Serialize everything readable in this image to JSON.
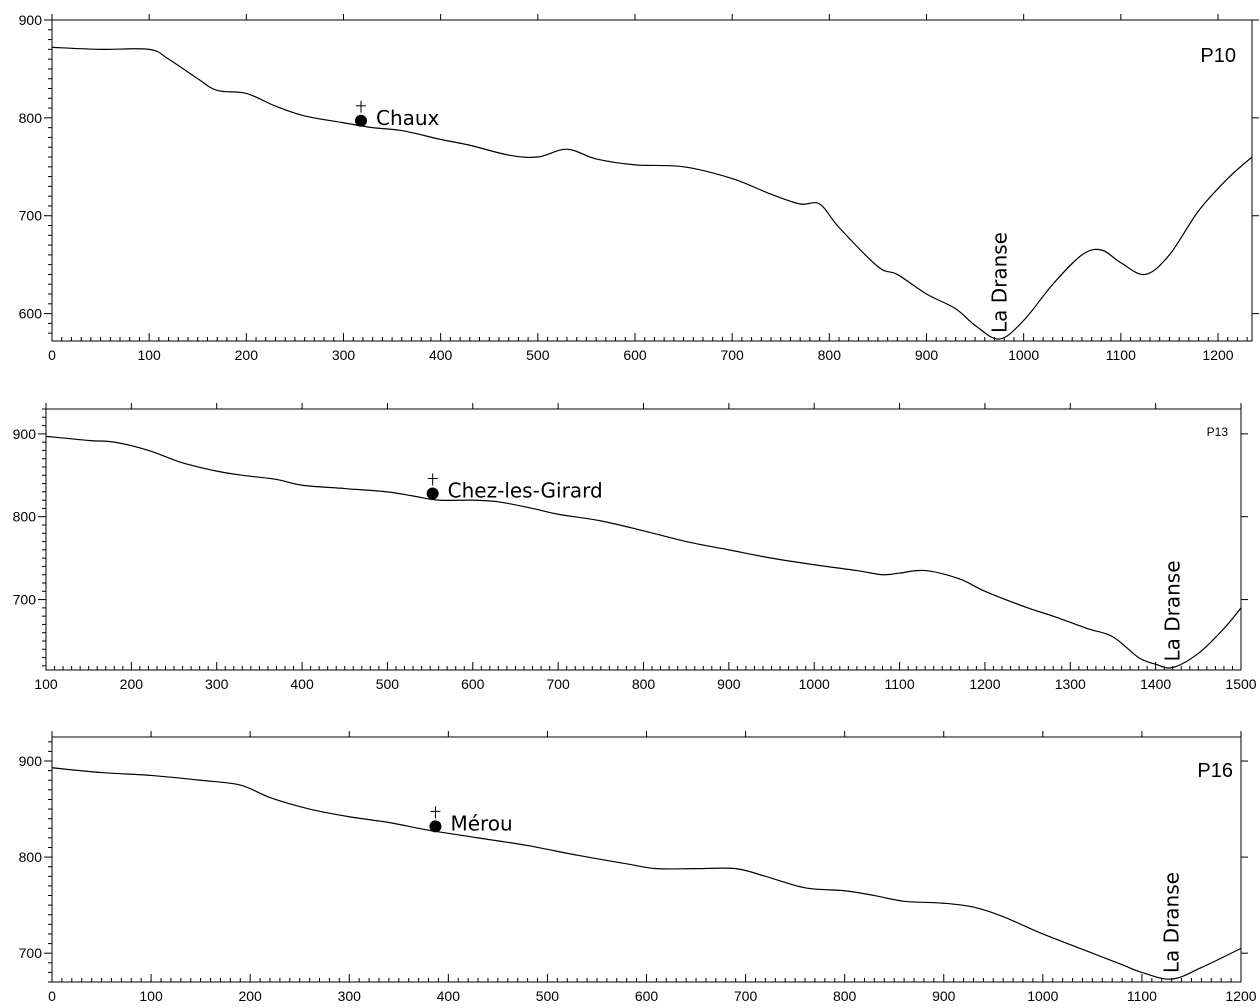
{
  "chart_data": [
    {
      "type": "line",
      "profile_id": "P10",
      "xlim": [
        0,
        1235
      ],
      "ylim": [
        572,
        900
      ],
      "x_ticks": [
        0,
        100,
        200,
        300,
        400,
        500,
        600,
        700,
        800,
        900,
        1000,
        1100,
        1200
      ],
      "y_ticks": [
        600,
        700,
        800,
        900
      ],
      "x": [
        0,
        50,
        100,
        120,
        150,
        170,
        200,
        230,
        260,
        300,
        330,
        360,
        400,
        430,
        470,
        500,
        530,
        560,
        600,
        650,
        700,
        740,
        770,
        790,
        810,
        850,
        870,
        900,
        930,
        950,
        975,
        1000,
        1030,
        1060,
        1080,
        1100,
        1125,
        1150,
        1180,
        1210,
        1235
      ],
      "y": [
        872,
        870,
        870,
        860,
        840,
        828,
        825,
        812,
        802,
        795,
        790,
        787,
        778,
        772,
        762,
        760,
        768,
        758,
        752,
        750,
        738,
        722,
        712,
        712,
        688,
        648,
        640,
        620,
        605,
        588,
        574,
        593,
        630,
        660,
        665,
        652,
        640,
        660,
        705,
        738,
        760
      ],
      "annotations": [
        {
          "label": "Chaux",
          "x": 318,
          "y": 797,
          "marker": "church"
        },
        {
          "label": "La Dranse",
          "x": 975,
          "y": 574,
          "orientation": "vertical"
        }
      ]
    },
    {
      "type": "line",
      "profile_id": "P13",
      "xlim": [
        100,
        1500
      ],
      "ylim": [
        615,
        930
      ],
      "x_ticks": [
        100,
        200,
        300,
        400,
        500,
        600,
        700,
        800,
        900,
        1000,
        1100,
        1200,
        1300,
        1400,
        1500
      ],
      "y_ticks": [
        700,
        800,
        900
      ],
      "x": [
        100,
        150,
        180,
        220,
        260,
        300,
        330,
        370,
        400,
        450,
        500,
        530,
        560,
        600,
        630,
        670,
        700,
        750,
        800,
        850,
        900,
        950,
        1000,
        1050,
        1080,
        1100,
        1130,
        1170,
        1200,
        1250,
        1280,
        1320,
        1350,
        1380,
        1400,
        1420,
        1450,
        1480,
        1500
      ],
      "y": [
        897,
        892,
        890,
        880,
        865,
        855,
        850,
        845,
        838,
        834,
        830,
        825,
        820,
        820,
        818,
        810,
        803,
        795,
        783,
        770,
        760,
        750,
        742,
        735,
        730,
        732,
        735,
        725,
        710,
        690,
        680,
        665,
        655,
        630,
        622,
        618,
        635,
        665,
        690
      ],
      "annotations": [
        {
          "label": "Chez-les-Girard",
          "x": 553,
          "y": 828,
          "marker": "church"
        },
        {
          "label": "La Dranse",
          "x": 1420,
          "y": 618,
          "orientation": "vertical"
        }
      ]
    },
    {
      "type": "line",
      "profile_id": "P16",
      "xlim": [
        0,
        1200
      ],
      "ylim": [
        670,
        925
      ],
      "x_ticks": [
        0,
        100,
        200,
        300,
        400,
        500,
        600,
        700,
        800,
        900,
        1000,
        1100,
        1200
      ],
      "y_ticks": [
        700,
        800,
        900
      ],
      "x": [
        0,
        50,
        100,
        150,
        190,
        220,
        260,
        300,
        340,
        380,
        430,
        480,
        530,
        580,
        610,
        650,
        690,
        720,
        760,
        800,
        830,
        860,
        900,
        930,
        960,
        1000,
        1050,
        1080,
        1100,
        1130,
        1160,
        1200
      ],
      "y": [
        893,
        888,
        885,
        880,
        875,
        862,
        850,
        842,
        836,
        828,
        820,
        812,
        802,
        793,
        788,
        788,
        788,
        780,
        768,
        765,
        760,
        754,
        752,
        748,
        738,
        720,
        700,
        688,
        680,
        673,
        685,
        705
      ],
      "annotations": [
        {
          "label": "Mérou",
          "x": 387,
          "y": 832,
          "marker": "church"
        },
        {
          "label": "La Dranse",
          "x": 1130,
          "y": 673,
          "orientation": "vertical"
        }
      ]
    }
  ]
}
